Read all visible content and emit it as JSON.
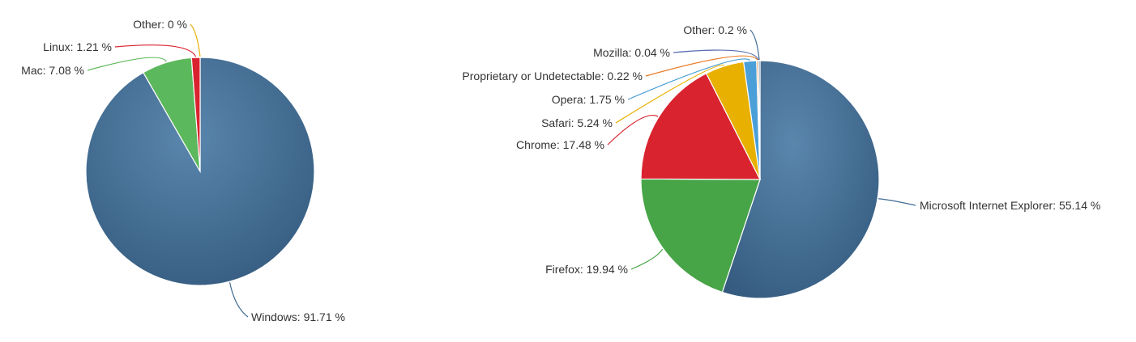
{
  "chart_data": [
    {
      "type": "pie",
      "slices": [
        {
          "name": "Windows",
          "value": 91.71,
          "label": "Windows: 91.71 %",
          "color": "#3f6a92"
        },
        {
          "name": "Mac",
          "value": 7.08,
          "label": "Mac: 7.08 %",
          "color": "#5cb85c"
        },
        {
          "name": "Linux",
          "value": 1.21,
          "label": "Linux: 1.21 %",
          "color": "#d9232f"
        },
        {
          "name": "Other",
          "value": 0,
          "label": "Other: 0 %",
          "color": "#e8b000"
        }
      ]
    },
    {
      "type": "pie",
      "slices": [
        {
          "name": "Microsoft Internet Explorer",
          "value": 55.14,
          "label": "Microsoft Internet Explorer: 55.14 %",
          "color": "#3f6a92"
        },
        {
          "name": "Firefox",
          "value": 19.94,
          "label": "Firefox: 19.94 %",
          "color": "#47a447"
        },
        {
          "name": "Chrome",
          "value": 17.48,
          "label": "Chrome: 17.48 %",
          "color": "#d9232f"
        },
        {
          "name": "Safari",
          "value": 5.24,
          "label": "Safari: 5.24 %",
          "color": "#e8b000"
        },
        {
          "name": "Opera",
          "value": 1.75,
          "label": "Opera: 1.75 %",
          "color": "#4a9fd8"
        },
        {
          "name": "Proprietary or Undetectable",
          "value": 0.22,
          "label": "Proprietary or Undetectable: 0.22 %",
          "color": "#e87722"
        },
        {
          "name": "Mozilla",
          "value": 0.04,
          "label": "Mozilla: 0.04 %",
          "color": "#5b6fb5"
        },
        {
          "name": "Other",
          "value": 0.2,
          "label": "Other: 0.2 %",
          "color": "#3f6a92"
        }
      ]
    }
  ]
}
